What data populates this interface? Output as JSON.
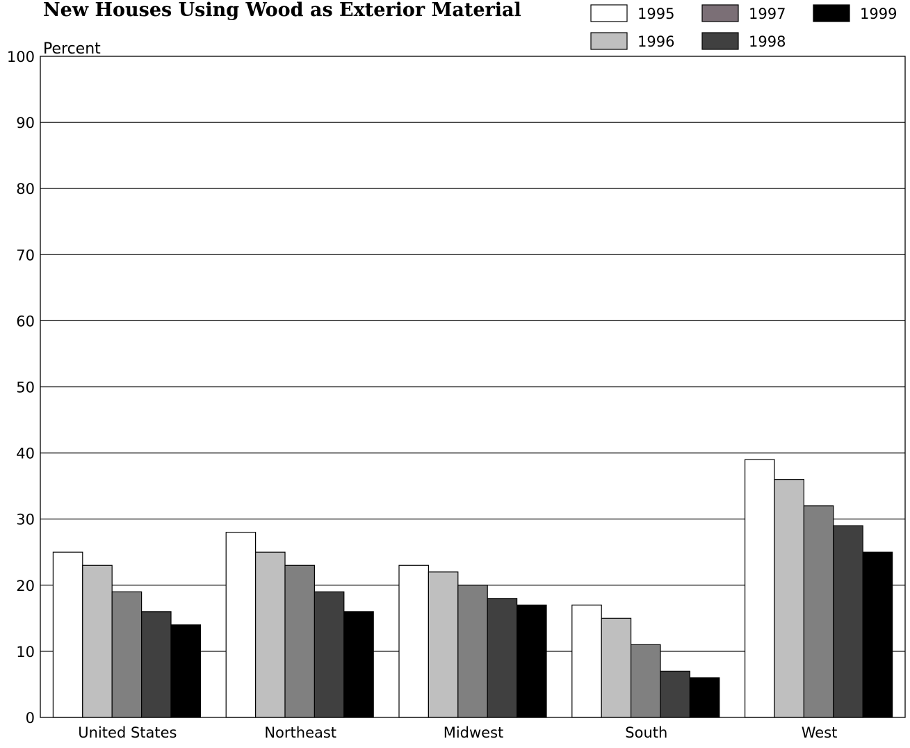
{
  "chart_data": {
    "type": "bar",
    "title": "New Houses Using Wood as Exterior Material",
    "ylabel": "Percent",
    "xlabel": "",
    "ylim": [
      0,
      100
    ],
    "yticks": [
      0,
      10,
      20,
      30,
      40,
      50,
      60,
      70,
      80,
      90,
      100
    ],
    "categories": [
      "United States",
      "Northeast",
      "Midwest",
      "South",
      "West"
    ],
    "series": [
      {
        "name": "1995",
        "color": "#ffffff",
        "values": [
          25,
          28,
          23,
          17,
          39
        ]
      },
      {
        "name": "1996",
        "color": "#bfbfbf",
        "values": [
          23,
          25,
          22,
          15,
          36
        ]
      },
      {
        "name": "1997",
        "color": "#808080",
        "values": [
          19,
          23,
          20,
          11,
          32
        ]
      },
      {
        "name": "1998",
        "color": "#404040",
        "values": [
          16,
          19,
          18,
          7,
          29
        ]
      },
      {
        "name": "1999",
        "color": "#000000",
        "values": [
          14,
          16,
          17,
          6,
          25
        ]
      }
    ],
    "legend_swatch_colors": [
      "#ffffff",
      "#bfbfbf",
      "#7b6f76",
      "#404040",
      "#000000"
    ],
    "grid": true,
    "legend_position": "top-right"
  }
}
